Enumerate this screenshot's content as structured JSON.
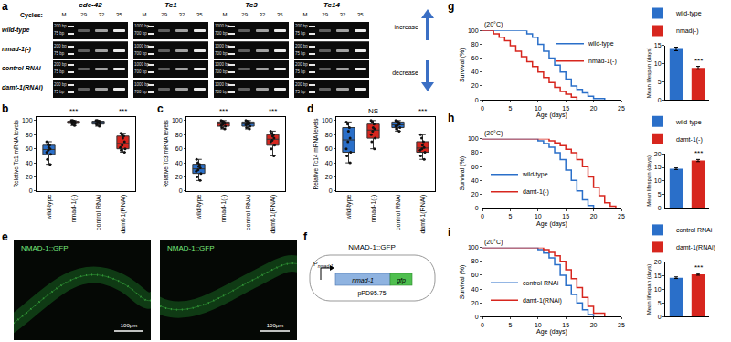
{
  "chart_data": [
    {
      "panel": "b",
      "type": "box",
      "categories": [
        "wild-type",
        "nmad-1(-)",
        "control RNAi",
        "damt-1(RNAi)"
      ],
      "colors": [
        "#2a6fc9",
        "#d7261e",
        "#2a6fc9",
        "#d7261e"
      ],
      "values": [
        [
          65,
          62,
          58,
          55,
          60,
          66,
          52,
          45,
          38,
          70
        ],
        [
          98,
          99,
          100,
          97,
          95,
          100,
          99,
          98,
          96,
          93
        ],
        [
          98,
          96,
          95,
          100,
          99,
          97,
          94,
          92,
          98,
          100
        ],
        [
          80,
          78,
          75,
          65,
          62,
          60,
          58,
          55,
          70,
          82
        ]
      ],
      "y_label": "Relative Tc1 mRNA levels",
      "ylim": [
        0,
        105
      ],
      "yticks": [
        0,
        20,
        40,
        60,
        80,
        100
      ],
      "annotations": [
        {
          "category": "nmad-1(-)",
          "text": "***"
        },
        {
          "category": "damt-1(RNAi)",
          "text": "***"
        }
      ]
    },
    {
      "panel": "c",
      "type": "box",
      "categories": [
        "wild-type",
        "nmad-1(-)",
        "control RNAi",
        "damt-1(RNAi)"
      ],
      "colors": [
        "#2a6fc9",
        "#d7261e",
        "#2a6fc9",
        "#d7261e"
      ],
      "values": [
        [
          35,
          30,
          25,
          40,
          45,
          20,
          28,
          33,
          38,
          15
        ],
        [
          95,
          98,
          100,
          92,
          90,
          88,
          97,
          99,
          93,
          96
        ],
        [
          95,
          92,
          98,
          100,
          90,
          97,
          94,
          88,
          99,
          96
        ],
        [
          80,
          75,
          70,
          85,
          78,
          65,
          60,
          50,
          72,
          82
        ]
      ],
      "y_label": "Relative Tc3 mRNA levels",
      "ylim": [
        0,
        105
      ],
      "yticks": [
        0,
        20,
        40,
        60,
        80,
        100
      ],
      "annotations": [
        {
          "category": "nmad-1(-)",
          "text": "***"
        },
        {
          "category": "damt-1(RNAi)",
          "text": "***"
        }
      ]
    },
    {
      "panel": "d",
      "type": "box",
      "categories": [
        "wild-type",
        "nmad-1(-)",
        "control RNAi",
        "damt-1(RNAi)"
      ],
      "colors": [
        "#2a6fc9",
        "#d7261e",
        "#2a6fc9",
        "#d7261e"
      ],
      "values": [
        [
          90,
          85,
          70,
          60,
          50,
          95,
          40,
          98,
          75,
          55
        ],
        [
          100,
          95,
          85,
          90,
          70,
          98,
          80,
          88,
          60,
          75
        ],
        [
          100,
          98,
          95,
          90,
          88,
          97,
          92,
          99,
          85,
          93
        ],
        [
          70,
          65,
          60,
          55,
          50,
          75,
          80,
          62,
          58,
          45
        ]
      ],
      "y_label": "Relative Tc14 mRNA levels",
      "ylim": [
        0,
        105
      ],
      "yticks": [
        0,
        20,
        40,
        60,
        80,
        100
      ],
      "annotations": [
        {
          "category": "nmad-1(-)",
          "text": "NS"
        },
        {
          "category": "damt-1(RNAi)",
          "text": "***"
        }
      ]
    },
    {
      "panel": "g",
      "type": "line",
      "title": "(20°C)",
      "x_label": "Age (days)",
      "y_label": "Survival (%)",
      "xlim": [
        0,
        25
      ],
      "xticks": [
        0,
        5,
        10,
        15,
        20,
        25
      ],
      "ylim": [
        0,
        100
      ],
      "yticks": [
        0,
        20,
        40,
        60,
        80,
        100
      ],
      "line_style": "step",
      "legend": "upper right",
      "series": [
        {
          "name": "wild-type",
          "color": "#2a6fc9",
          "x": [
            0,
            6,
            8,
            9,
            10,
            11,
            12,
            13,
            14,
            15,
            16,
            17,
            18,
            19,
            20,
            22
          ],
          "values": [
            100,
            100,
            95,
            90,
            80,
            70,
            60,
            50,
            40,
            30,
            20,
            15,
            10,
            5,
            2,
            0
          ]
        },
        {
          "name": "nmad-1(-)",
          "color": "#d7261e",
          "x": [
            0,
            2,
            3,
            4,
            5,
            6,
            7,
            8,
            9,
            10,
            11,
            12,
            13,
            14,
            15,
            16,
            17
          ],
          "values": [
            100,
            95,
            90,
            85,
            78,
            70,
            62,
            55,
            48,
            40,
            32,
            25,
            18,
            12,
            8,
            4,
            0
          ]
        }
      ]
    },
    {
      "type": "bar",
      "y_label": "Mean lifespan (days)",
      "categories": [
        "wild-type",
        "nmad(-)"
      ],
      "values": [
        14,
        8.8
      ],
      "errors": [
        0.5,
        0.4
      ],
      "colors": [
        "#2a6fc9",
        "#d7261e"
      ],
      "ylim": [
        0,
        15
      ],
      "yticks": [
        0,
        5,
        10,
        15
      ],
      "tick_labels": "y",
      "legend": "top",
      "annotations": [
        {
          "category": "nmad(-)",
          "text": "***"
        }
      ]
    },
    {
      "panel": "h",
      "type": "line",
      "title": "(20°C)",
      "x_label": "Age (days)",
      "y_label": "Survival (%)",
      "xlim": [
        0,
        25
      ],
      "xticks": [
        0,
        5,
        10,
        15,
        20,
        25
      ],
      "ylim": [
        0,
        100
      ],
      "yticks": [
        0,
        20,
        40,
        60,
        80,
        100
      ],
      "line_style": "step",
      "legend": "lower left",
      "series": [
        {
          "name": "wild-type",
          "color": "#2a6fc9",
          "x": [
            0,
            8,
            10,
            11,
            12,
            13,
            14,
            15,
            16,
            17,
            18,
            19,
            20
          ],
          "values": [
            100,
            100,
            97,
            93,
            88,
            80,
            70,
            55,
            40,
            25,
            12,
            4,
            0
          ]
        },
        {
          "name": "damt-1(-)",
          "color": "#d7261e",
          "x": [
            0,
            10,
            12,
            13,
            14,
            15,
            16,
            17,
            18,
            19,
            20,
            21,
            22,
            23,
            24
          ],
          "values": [
            100,
            100,
            97,
            94,
            90,
            85,
            80,
            70,
            60,
            45,
            30,
            18,
            8,
            3,
            0
          ]
        }
      ]
    },
    {
      "type": "bar",
      "y_label": "Mean lifespan (days)",
      "categories": [
        "wild-type",
        "damt-1(-)"
      ],
      "values": [
        14.5,
        17.5
      ],
      "errors": [
        0.3,
        0.4
      ],
      "colors": [
        "#2a6fc9",
        "#d7261e"
      ],
      "ylim": [
        0,
        20
      ],
      "yticks": [
        0,
        5,
        10,
        15,
        20
      ],
      "tick_labels": "y",
      "legend": "top",
      "annotations": [
        {
          "category": "damt-1(-)",
          "text": "***"
        }
      ]
    },
    {
      "panel": "i",
      "type": "line",
      "title": "(20°C)",
      "x_label": "Age (days)",
      "y_label": "Survival (%)",
      "xlim": [
        0,
        25
      ],
      "xticks": [
        0,
        5,
        10,
        15,
        20,
        25
      ],
      "ylim": [
        0,
        100
      ],
      "yticks": [
        0,
        20,
        40,
        60,
        80,
        100
      ],
      "line_style": "step",
      "legend": "lower left",
      "series": [
        {
          "name": "control RNAi",
          "color": "#2a6fc9",
          "x": [
            0,
            9,
            10,
            11,
            12,
            13,
            14,
            15,
            16,
            17,
            18,
            19,
            20
          ],
          "values": [
            100,
            100,
            97,
            92,
            85,
            75,
            60,
            45,
            32,
            20,
            10,
            3,
            0
          ]
        },
        {
          "name": "damt-1(RNAi)",
          "color": "#d7261e",
          "x": [
            0,
            9,
            11,
            12,
            13,
            14,
            15,
            16,
            17,
            18,
            19,
            20,
            22
          ],
          "values": [
            100,
            100,
            97,
            93,
            88,
            80,
            68,
            55,
            42,
            28,
            15,
            5,
            0
          ]
        }
      ]
    },
    {
      "type": "bar",
      "y_label": "Mean lifespan (days)",
      "categories": [
        "control RNAi",
        "damt-1(RNAi)"
      ],
      "values": [
        14.3,
        15.5
      ],
      "errors": [
        0.3,
        0.3
      ],
      "colors": [
        "#2a6fc9",
        "#d7261e"
      ],
      "ylim": [
        0,
        20
      ],
      "yticks": [
        0,
        5,
        10,
        15,
        20
      ],
      "tick_labels": "y",
      "legend": "top",
      "annotations": [
        {
          "category": "damt-1(RNAi)",
          "text": "***"
        }
      ]
    }
  ],
  "gel": {
    "panel": "a",
    "cycles_label": "Cycles:",
    "marker_lane": "M",
    "cycles": [
      "29",
      "32",
      "35"
    ],
    "rows": [
      "wild-type",
      "nmad-1(-)",
      "control RNAi",
      "damt-1(RNAi)"
    ],
    "genes": [
      {
        "name": "cdc-42",
        "ladder": [
          "200 bp",
          "75 bp"
        ]
      },
      {
        "name": "Tc1",
        "ladder": [
          "1000 bp",
          "700 bp"
        ]
      },
      {
        "name": "Tc3",
        "ladder": [
          "1000 bp",
          "700 bp"
        ]
      },
      {
        "name": "Tc14",
        "ladder": [
          "200 bp",
          "75 bp"
        ]
      }
    ],
    "arrows": [
      "increase",
      "decrease"
    ]
  },
  "images": {
    "panel": "e",
    "items": [
      {
        "label": "NMAD-1::GFP",
        "scale": "100μm"
      },
      {
        "label": "NMAD-1::GFP",
        "scale": "100μm"
      }
    ]
  },
  "construct": {
    "panel": "f",
    "title": "NMAD-1::GFP",
    "promoter": "P",
    "promoter_sub": "nmad-1",
    "gene": "nmad-1",
    "tag": "gfp",
    "plasmid": "pPD95.75"
  }
}
